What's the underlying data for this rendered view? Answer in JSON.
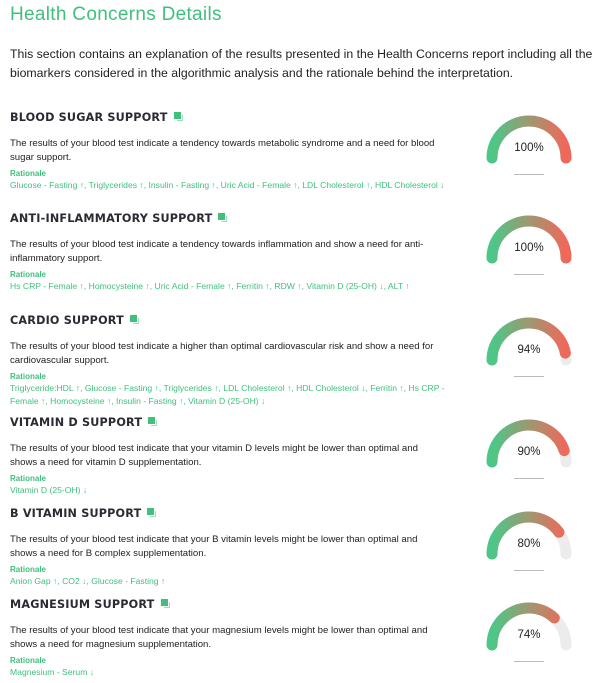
{
  "page": {
    "title": "Health Concerns Details",
    "intro": "This section contains an explanation of the results presented in the Health Concerns report including all the biomarkers considered in the algorithmic analysis and the rationale behind the interpretation."
  },
  "colors": {
    "accent": "#3fc17d",
    "gauge_start": "#4cc788",
    "gauge_end": "#f0685a",
    "gauge_track": "#ececec"
  },
  "rationale_label": "Rationale",
  "sections": [
    {
      "title": "BLOOD SUGAR SUPPORT",
      "description": "The results of your blood test indicate a tendency towards metabolic syndrome and a need for blood sugar support.",
      "markers": "Glucose - Fasting ↑, Triglycerides ↑, Insulin - Fasting ↑, Uric Acid - Female ↑, LDL Cholesterol ↑, HDL Cholesterol ↓",
      "percent": "100%",
      "value": 100
    },
    {
      "title": "ANTI-INFLAMMATORY SUPPORT",
      "description": "The results of your blood test indicate a tendency towards inflammation and show a need for anti-inflammatory support.",
      "markers": "Hs CRP - Female ↑, Homocysteine ↑, Uric Acid - Female ↑, Ferritin ↑, RDW ↑, Vitamin D (25-OH) ↓, ALT ↑",
      "percent": "100%",
      "value": 100
    },
    {
      "title": "CARDIO SUPPORT",
      "description": "The results of your blood test indicate a higher than optimal cardiovascular risk and show a need for cardiovascular support.",
      "markers": "Triglyceride:HDL ↑, Glucose - Fasting ↑, Triglycerides ↑, LDL Cholesterol ↑, HDL Cholesterol ↓, Ferritin ↑, Hs CRP - Female ↑, Homocysteine ↑, Insulin - Fasting ↑, Vitamin D (25-OH) ↓",
      "percent": "94%",
      "value": 94
    },
    {
      "title": "VITAMIN D SUPPORT",
      "description": "The results of your blood test indicate that your vitamin D levels might be lower than optimal and shows a need for vitamin D supplementation.",
      "markers": "Vitamin D (25-OH) ↓",
      "percent": "90%",
      "value": 90
    },
    {
      "title": "B VITAMIN SUPPORT",
      "description": "The results of your blood test indicate that your B vitamin levels might be lower than optimal and shows a need for B complex supplementation.",
      "markers": "Anion Gap ↑, CO2 ↓, Glucose - Fasting ↑",
      "percent": "80%",
      "value": 80
    },
    {
      "title": "MAGNESIUM SUPPORT",
      "description": "The results of your blood test indicate that your magnesium levels might be lower than optimal and shows a need for magnesium supplementation.",
      "markers": "Magnesium - Serum ↓",
      "percent": "74%",
      "value": 74
    }
  ]
}
